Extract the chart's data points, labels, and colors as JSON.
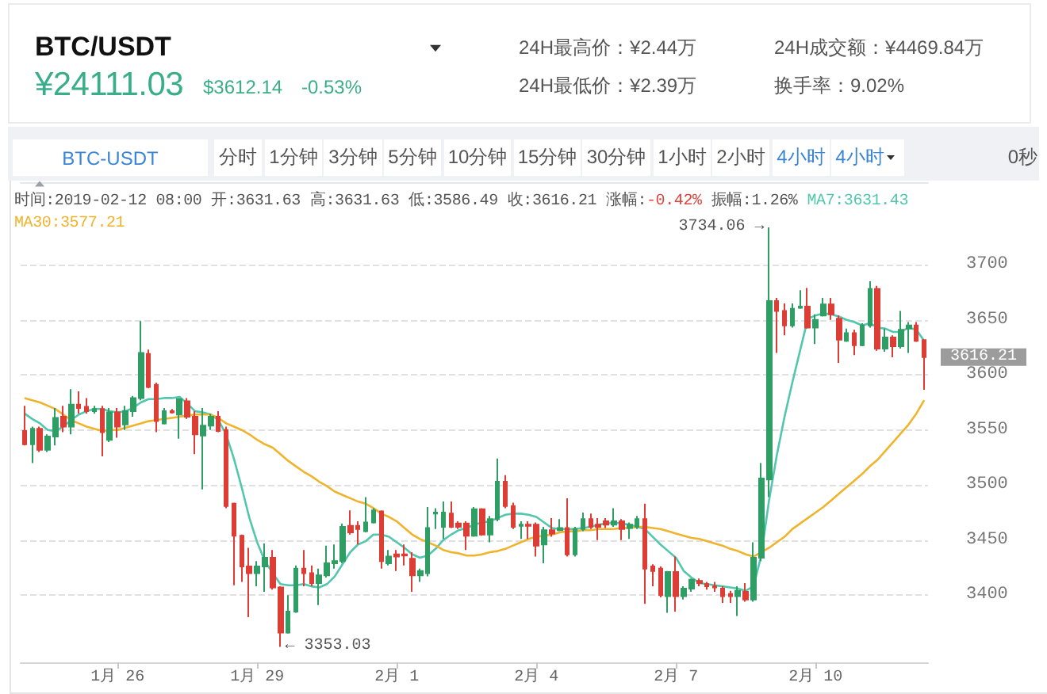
{
  "chart_data": {
    "type": "candlestick",
    "title": "BTC/USDT",
    "categories": [
      null,
      null,
      null,
      null,
      null,
      null,
      null,
      null,
      null,
      null,
      null,
      null,
      "1月 26",
      null,
      null,
      null,
      null,
      null,
      null,
      null,
      null,
      null,
      null,
      null,
      null,
      null,
      null,
      null,
      null,
      null,
      "1月 29",
      null,
      null,
      null,
      null,
      null,
      null,
      null,
      null,
      null,
      null,
      null,
      null,
      null,
      null,
      null,
      null,
      null,
      "2月 1",
      null,
      null,
      null,
      null,
      null,
      null,
      null,
      null,
      null,
      null,
      null,
      null,
      null,
      null,
      null,
      null,
      null,
      "2月 4",
      null,
      null,
      null,
      null,
      null,
      null,
      null,
      null,
      null,
      null,
      null,
      null,
      null,
      null,
      null,
      null,
      null,
      "2月 7",
      null,
      null,
      null,
      null,
      null,
      null,
      null,
      null,
      null,
      null,
      null,
      null,
      null,
      null,
      null,
      null,
      null,
      "2月 10",
      null,
      null,
      null,
      null,
      null,
      null,
      null,
      null,
      null,
      null,
      null,
      null,
      null,
      null
    ],
    "ohlc": [
      [
        3549,
        3572,
        3536,
        3537
      ],
      [
        3537,
        3553,
        3520,
        3551
      ],
      [
        3551,
        3553,
        3530,
        3532
      ],
      [
        3532,
        3546,
        3530,
        3544
      ],
      [
        3544,
        3570,
        3536,
        3561
      ],
      [
        3562,
        3572,
        3548,
        3553
      ],
      [
        3553,
        3587,
        3546,
        3573
      ],
      [
        3573,
        3585,
        3565,
        3570
      ],
      [
        3571,
        3579,
        3565,
        3567
      ],
      [
        3567,
        3572,
        3565,
        3569
      ],
      [
        3569,
        3572,
        3526,
        3548
      ],
      [
        3541,
        3570,
        3539,
        3566
      ],
      [
        3566,
        3570,
        3543,
        3553
      ],
      [
        3555,
        3572,
        3550,
        3567
      ],
      [
        3567,
        3581,
        3562,
        3579
      ],
      [
        3579,
        3649,
        3577,
        3620
      ],
      [
        3619,
        3623,
        3588,
        3589
      ],
      [
        3591,
        3593,
        3548,
        3558
      ],
      [
        3556,
        3570,
        3555,
        3567
      ],
      [
        3567,
        3569,
        3565,
        3566
      ],
      [
        3564,
        3579,
        3542,
        3578
      ],
      [
        3576,
        3579,
        3560,
        3562
      ],
      [
        3562,
        3567,
        3528,
        3546
      ],
      [
        3545,
        3570,
        3496,
        3554
      ],
      [
        3554,
        3565,
        3550,
        3562
      ],
      [
        3562,
        3567,
        3548,
        3549
      ],
      [
        3550,
        3553,
        3479,
        3481
      ],
      [
        3483,
        3484,
        3409,
        3454
      ],
      [
        3454,
        3455,
        3412,
        3426
      ],
      [
        3426,
        3443,
        3380,
        3420
      ],
      [
        3420,
        3431,
        3408,
        3426
      ],
      [
        3426,
        3447,
        3403,
        3434
      ],
      [
        3434,
        3441,
        3405,
        3407
      ],
      [
        3407,
        3408,
        3353.03,
        3366
      ],
      [
        3366,
        3400,
        3365,
        3385
      ],
      [
        3385,
        3427,
        3384,
        3424
      ],
      [
        3424,
        3441,
        3408,
        3420
      ],
      [
        3420,
        3427,
        3408,
        3411
      ],
      [
        3411,
        3424,
        3391,
        3418
      ],
      [
        3418,
        3445,
        3416,
        3429
      ],
      [
        3429,
        3446,
        3424,
        3431
      ],
      [
        3431,
        3465,
        3429,
        3462
      ],
      [
        3463,
        3477,
        3455,
        3457
      ],
      [
        3463,
        3467,
        3446,
        3460
      ],
      [
        3458,
        3489,
        3457,
        3466
      ],
      [
        3466,
        3479,
        3465,
        3477
      ],
      [
        3476,
        3477,
        3424,
        3431
      ],
      [
        3429,
        3441,
        3427,
        3435
      ],
      [
        3437,
        3441,
        3422,
        3435
      ],
      [
        3437,
        3446,
        3427,
        3436
      ],
      [
        3433,
        3439,
        3403,
        3418
      ],
      [
        3418,
        3424,
        3412,
        3422
      ],
      [
        3420,
        3480,
        3417,
        3461
      ],
      [
        3474,
        3479,
        3460,
        3475
      ],
      [
        3462,
        3485,
        3451,
        3475
      ],
      [
        3474,
        3485,
        3461,
        3462
      ],
      [
        3465,
        3467,
        3460,
        3462
      ],
      [
        3465,
        3467,
        3441,
        3454
      ],
      [
        3454,
        3480,
        3453,
        3478
      ],
      [
        3478,
        3479,
        3454,
        3455
      ],
      [
        3455,
        3472,
        3448,
        3469
      ],
      [
        3469,
        3524,
        3467,
        3503
      ],
      [
        3503,
        3509,
        3479,
        3481
      ],
      [
        3481,
        3484,
        3460,
        3462
      ],
      [
        3463,
        3467,
        3451,
        3464
      ],
      [
        3464,
        3467,
        3451,
        3463
      ],
      [
        3464,
        3466,
        3435,
        3445
      ],
      [
        3446,
        3462,
        3429,
        3459
      ],
      [
        3459,
        3470,
        3453,
        3456
      ],
      [
        3459,
        3469,
        3458,
        3461
      ],
      [
        3461,
        3488,
        3435,
        3437
      ],
      [
        3437,
        3462,
        3435,
        3460
      ],
      [
        3460,
        3475,
        3458,
        3469
      ],
      [
        3469,
        3474,
        3460,
        3462
      ],
      [
        3464,
        3470,
        3450,
        3462
      ],
      [
        3467,
        3470,
        3461,
        3464
      ],
      [
        3464,
        3479,
        3462,
        3467
      ],
      [
        3467,
        3469,
        3450,
        3460
      ],
      [
        3461,
        3466,
        3451,
        3464
      ],
      [
        3462,
        3472,
        3460,
        3469
      ],
      [
        3469,
        3483,
        3392,
        3424
      ],
      [
        3426,
        3428,
        3408,
        3422
      ],
      [
        3424,
        3426,
        3398,
        3400
      ],
      [
        3399,
        3422,
        3384,
        3421
      ],
      [
        3421,
        3435,
        3385,
        3399
      ],
      [
        3399,
        3408,
        3396,
        3406
      ],
      [
        3406,
        3415,
        3403,
        3414
      ],
      [
        3413,
        3415,
        3408,
        3411
      ],
      [
        3410,
        3412,
        3405,
        3408
      ],
      [
        3408,
        3412,
        3403,
        3407
      ],
      [
        3406,
        3408,
        3393,
        3399
      ],
      [
        3401,
        3404,
        3393,
        3399
      ],
      [
        3399,
        3408,
        3381,
        3404
      ],
      [
        3403,
        3411,
        3394,
        3396
      ],
      [
        3396,
        3448,
        3394,
        3434
      ],
      [
        3434,
        3520,
        3431,
        3506
      ],
      [
        3505,
        3734.06,
        3489,
        3667
      ],
      [
        3667,
        3670,
        3620,
        3658
      ],
      [
        3658,
        3665,
        3636,
        3645
      ],
      [
        3645,
        3665,
        3643,
        3660
      ],
      [
        3661,
        3677,
        3660,
        3662
      ],
      [
        3662,
        3679,
        3642,
        3643
      ],
      [
        3643,
        3655,
        3628,
        3650
      ],
      [
        3654,
        3670,
        3653,
        3664
      ],
      [
        3664,
        3670,
        3650,
        3655
      ],
      [
        3651,
        3654,
        3611,
        3632
      ],
      [
        3631,
        3642,
        3630,
        3638
      ],
      [
        3638,
        3641,
        3618,
        3627
      ],
      [
        3627,
        3647,
        3626,
        3645
      ],
      [
        3645,
        3685,
        3643,
        3678
      ],
      [
        3678,
        3681,
        3622,
        3624
      ],
      [
        3624,
        3642,
        3621,
        3634
      ],
      [
        3634,
        3636,
        3616,
        3626
      ],
      [
        3626,
        3658,
        3624,
        3641
      ],
      [
        3642,
        3648,
        3620,
        3645
      ],
      [
        3645,
        3648,
        3630,
        3631
      ],
      [
        3631.63,
        3631.63,
        3586.49,
        3616.21
      ]
    ],
    "series": [
      {
        "name": "MA7:3631.43",
        "type": "line",
        "color": "#52c7ae",
        "values": [
          3565,
          3560,
          3556,
          3550,
          3549,
          3553,
          3559,
          3564,
          3567,
          3569,
          3569,
          3567,
          3566,
          3567,
          3570,
          3575,
          3578,
          3578,
          3579,
          3579,
          3580,
          3574,
          3567,
          3566,
          3564,
          3559,
          3546,
          3524,
          3498,
          3470,
          3448,
          3431,
          3420,
          3410,
          3409,
          3409,
          3410,
          3408,
          3407,
          3410,
          3417,
          3428,
          3439,
          3446,
          3449,
          3455,
          3455,
          3453,
          3448,
          3443,
          3437,
          3434,
          3436,
          3442,
          3450,
          3455,
          3459,
          3461,
          3464,
          3466,
          3467,
          3470,
          3473,
          3474,
          3474,
          3473,
          3471,
          3466,
          3461,
          3460,
          3460,
          3460,
          3461,
          3462,
          3464,
          3465,
          3466,
          3465,
          3464,
          3462,
          3460,
          3453,
          3446,
          3440,
          3434,
          3422,
          3416,
          3411,
          3410,
          3409,
          3408,
          3407,
          3406,
          3404,
          3408,
          3436,
          3486,
          3527,
          3562,
          3593,
          3622,
          3651,
          3654,
          3656,
          3655,
          3653,
          3650,
          3648,
          3645,
          3647,
          3643,
          3642,
          3639,
          3639,
          3643,
          3641,
          3631
        ]
      },
      {
        "name": "MA30:3577.21",
        "type": "line",
        "color": "#f0b42c",
        "values": [
          3579,
          3577,
          3575,
          3572,
          3569,
          3564,
          3559,
          3556,
          3553,
          3551,
          3549,
          3550,
          3550,
          3552,
          3554,
          3556,
          3558,
          3559,
          3560,
          3561,
          3562,
          3563,
          3564,
          3564,
          3564,
          3561,
          3556,
          3553,
          3550,
          3546,
          3541,
          3537,
          3534,
          3528,
          3522,
          3517,
          3512,
          3508,
          3503,
          3499,
          3494,
          3491,
          3488,
          3485,
          3483,
          3479,
          3474,
          3471,
          3467,
          3461,
          3455,
          3451,
          3448,
          3445,
          3441,
          3439,
          3438,
          3436,
          3436,
          3437,
          3439,
          3440,
          3442,
          3445,
          3448,
          3451,
          3453,
          3454,
          3455,
          3457,
          3458,
          3458,
          3459,
          3459,
          3460,
          3460,
          3460,
          3461,
          3461,
          3462,
          3462,
          3461,
          3460,
          3458,
          3456,
          3454,
          3452,
          3451,
          3449,
          3447,
          3445,
          3442,
          3440,
          3437,
          3435,
          3439,
          3443,
          3448,
          3453,
          3460,
          3465,
          3470,
          3475,
          3480,
          3486,
          3492,
          3498,
          3504,
          3510,
          3517,
          3523,
          3531,
          3539,
          3547,
          3555,
          3565,
          3577
        ]
      }
    ],
    "ylim": [
      3339,
      3775
    ],
    "yticks": [
      3400,
      3450,
      3500,
      3550,
      3600,
      3650,
      3700
    ],
    "grid": "y",
    "annotations": [
      "¥24111.03",
      "$3612.14",
      "-0.53%",
      "24H最高价：¥2.44万",
      "24H最低价：¥2.39万",
      "24H成交额：¥4469.84万",
      "换手率：9.02%",
      "BTC-USDT",
      "分时",
      "1分钟",
      "3分钟",
      "5分钟",
      "10分钟",
      "15分钟",
      "30分钟",
      "1小时",
      "2小时",
      "4小时",
      "4小时",
      "0秒",
      "时间:2019-02-12 08:00",
      "开:3631.63",
      "高:3631.63",
      "低:3586.49",
      "收:3616.21",
      "涨幅:-0.42%",
      "振幅:1.26%",
      "3734.06 →",
      "← 3353.03",
      "3616.21"
    ]
  }
}
